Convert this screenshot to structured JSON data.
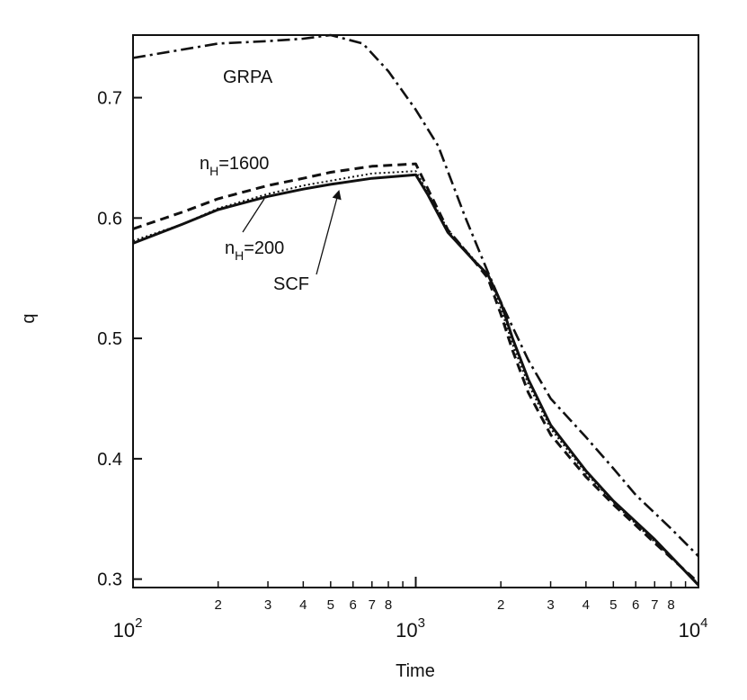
{
  "chart_data": {
    "type": "line",
    "title": "",
    "xlabel": "Time",
    "ylabel": "q",
    "xscale": "log",
    "xlim": [
      100,
      10000
    ],
    "ylim": [
      0.293,
      0.752
    ],
    "grid": false,
    "x_major_ticks": [
      {
        "value": 100,
        "base": "10",
        "exp": "2"
      },
      {
        "value": 1000,
        "base": "10",
        "exp": "3"
      },
      {
        "value": 10000,
        "base": "10",
        "exp": "4"
      }
    ],
    "x_minor_labels": [
      "2",
      "3",
      "4",
      "5",
      "6",
      "7",
      "8"
    ],
    "y_ticks": [
      {
        "value": 0.3,
        "label": "0.3"
      },
      {
        "value": 0.4,
        "label": "0.4"
      },
      {
        "value": 0.5,
        "label": "0.5"
      },
      {
        "value": 0.6,
        "label": "0.6"
      },
      {
        "value": 0.7,
        "label": "0.7"
      }
    ],
    "series": [
      {
        "name": "GRPA",
        "style": "dashdot",
        "x": [
          100,
          200,
          300,
          400,
          500,
          650,
          800,
          1000,
          1200,
          1500,
          1800,
          2000,
          2500,
          3000,
          4000,
          5000,
          6000,
          8000,
          10000
        ],
        "y": [
          0.733,
          0.745,
          0.747,
          0.749,
          0.752,
          0.745,
          0.722,
          0.69,
          0.66,
          0.6,
          0.555,
          0.53,
          0.482,
          0.45,
          0.418,
          0.392,
          0.37,
          0.342,
          0.319
        ]
      },
      {
        "name": "nH=1600",
        "style": "dashed",
        "x": [
          100,
          150,
          200,
          300,
          400,
          500,
          700,
          1000,
          1100,
          1300,
          1600,
          1800,
          2000,
          2200,
          2500,
          3000,
          4000,
          5000,
          7000,
          10000
        ],
        "y": [
          0.591,
          0.605,
          0.616,
          0.627,
          0.633,
          0.638,
          0.643,
          0.645,
          0.625,
          0.59,
          0.565,
          0.55,
          0.52,
          0.49,
          0.455,
          0.42,
          0.385,
          0.362,
          0.33,
          0.297
        ]
      },
      {
        "name": "nH=200",
        "style": "dotted",
        "x": [
          100,
          150,
          200,
          300,
          400,
          500,
          700,
          1000,
          1100,
          1300,
          1600,
          1800,
          2000,
          2200,
          2500,
          3000,
          4000,
          5000,
          7000,
          10000
        ],
        "y": [
          0.581,
          0.595,
          0.608,
          0.62,
          0.627,
          0.631,
          0.637,
          0.639,
          0.622,
          0.59,
          0.566,
          0.553,
          0.525,
          0.495,
          0.462,
          0.425,
          0.388,
          0.364,
          0.331,
          0.296
        ]
      },
      {
        "name": "SCF",
        "style": "solid",
        "x": [
          100,
          150,
          200,
          300,
          400,
          500,
          700,
          1000,
          1100,
          1300,
          1600,
          1800,
          2000,
          2200,
          2500,
          3000,
          4000,
          5000,
          7000,
          10000
        ],
        "y": [
          0.579,
          0.595,
          0.607,
          0.618,
          0.624,
          0.628,
          0.633,
          0.636,
          0.62,
          0.588,
          0.565,
          0.553,
          0.53,
          0.5,
          0.466,
          0.428,
          0.39,
          0.365,
          0.333,
          0.295
        ]
      }
    ],
    "annotations": [
      {
        "id": "grpa",
        "text": "GRPA"
      },
      {
        "id": "nh1600",
        "main": "n",
        "sub": "H",
        "rest": "=1600"
      },
      {
        "id": "nh200",
        "main": "n",
        "sub": "H",
        "rest": "=200"
      },
      {
        "id": "scf",
        "text": "SCF"
      }
    ]
  }
}
